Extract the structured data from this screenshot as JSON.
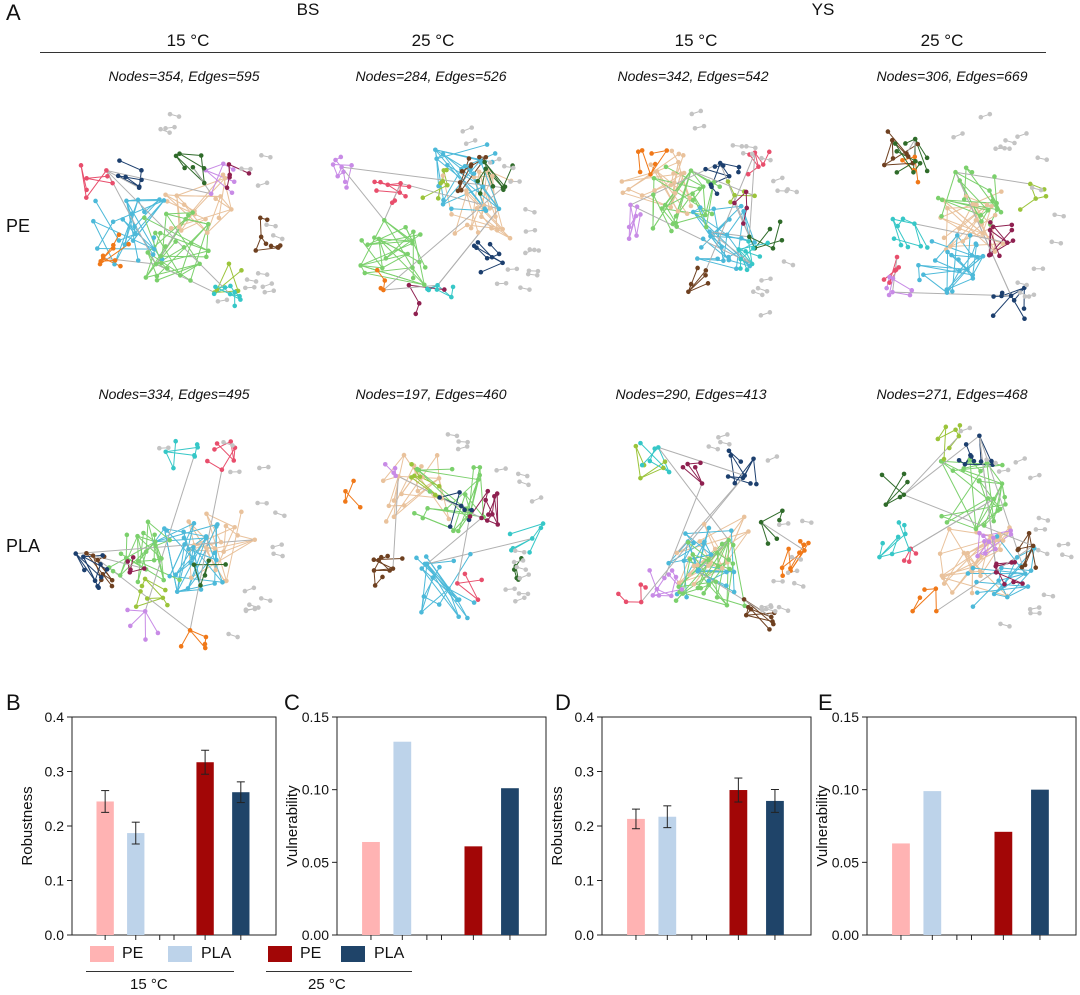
{
  "panel_labels": {
    "a": "A",
    "b": "B",
    "c": "C",
    "d": "D",
    "e": "E"
  },
  "groups": [
    {
      "name": "BS",
      "temps": [
        "15 °C",
        "25 °C"
      ]
    },
    {
      "name": "YS",
      "temps": [
        "15 °C",
        "25 °C"
      ]
    }
  ],
  "rows": [
    "PE",
    "PLA"
  ],
  "networks": [
    [
      "Nodes=354, Edges=595",
      "Nodes=284, Edges=526",
      "Nodes=342, Edges=542",
      "Nodes=306, Edges=669"
    ],
    [
      "Nodes=334, Edges=495",
      "Nodes=197, Edges=460",
      "Nodes=290, Edges=413",
      "Nodes=271, Edges=468"
    ]
  ],
  "colors": {
    "pe_15": "#ffb3b3",
    "pla_15": "#bdd3ea",
    "pe_25": "#a20606",
    "pla_25": "#1f4469",
    "module_palette": [
      "#e9c29c",
      "#4cb9d9",
      "#7bd06c",
      "#f07818",
      "#c88be6",
      "#9bc43a",
      "#6e4020",
      "#e84e6c",
      "#1c3f6e",
      "#2f6b2a",
      "#36c7c7",
      "#8f2050"
    ]
  },
  "legend": {
    "items": [
      "PE",
      "PLA",
      "PE",
      "PLA"
    ],
    "group_labels": [
      "15 °C",
      "25 °C"
    ]
  },
  "chart_data": [
    {
      "id": "B",
      "type": "bar",
      "ylabel": "Robustness",
      "ylim": [
        0,
        0.4
      ],
      "yticks": [
        "0.0",
        "0.1",
        "0.2",
        "0.3",
        "0.4"
      ],
      "categories": [
        "PE 15 °C",
        "PLA 15 °C",
        "PE 25 °C",
        "PLA 25 °C"
      ],
      "values": [
        0.245,
        0.187,
        0.317,
        0.262
      ],
      "errors": [
        0.02,
        0.02,
        0.022,
        0.019
      ]
    },
    {
      "id": "C",
      "type": "bar",
      "ylabel": "Vulnerability",
      "ylim": [
        0,
        0.15
      ],
      "yticks": [
        "0.00",
        "0.05",
        "0.10",
        "0.15"
      ],
      "categories": [
        "PE 15 °C",
        "PLA 15 °C",
        "PE 25 °C",
        "PLA 25 °C"
      ],
      "values": [
        0.064,
        0.133,
        0.061,
        0.101
      ],
      "errors": []
    },
    {
      "id": "D",
      "type": "bar",
      "ylabel": "Robustness",
      "ylim": [
        0,
        0.4
      ],
      "yticks": [
        "0.0",
        "0.1",
        "0.2",
        "0.3",
        "0.4"
      ],
      "categories": [
        "PE 15 °C",
        "PLA 15 °C",
        "PE 25 °C",
        "PLA 25 °C"
      ],
      "values": [
        0.213,
        0.217,
        0.266,
        0.246
      ],
      "errors": [
        0.018,
        0.02,
        0.022,
        0.021
      ]
    },
    {
      "id": "E",
      "type": "bar",
      "ylabel": "Vulnerability",
      "ylim": [
        0,
        0.15
      ],
      "yticks": [
        "0.00",
        "0.05",
        "0.10",
        "0.15"
      ],
      "categories": [
        "PE 15 °C",
        "PLA 15 °C",
        "PE 25 °C",
        "PLA 25 °C"
      ],
      "values": [
        0.063,
        0.099,
        0.071,
        0.1
      ],
      "errors": []
    }
  ]
}
